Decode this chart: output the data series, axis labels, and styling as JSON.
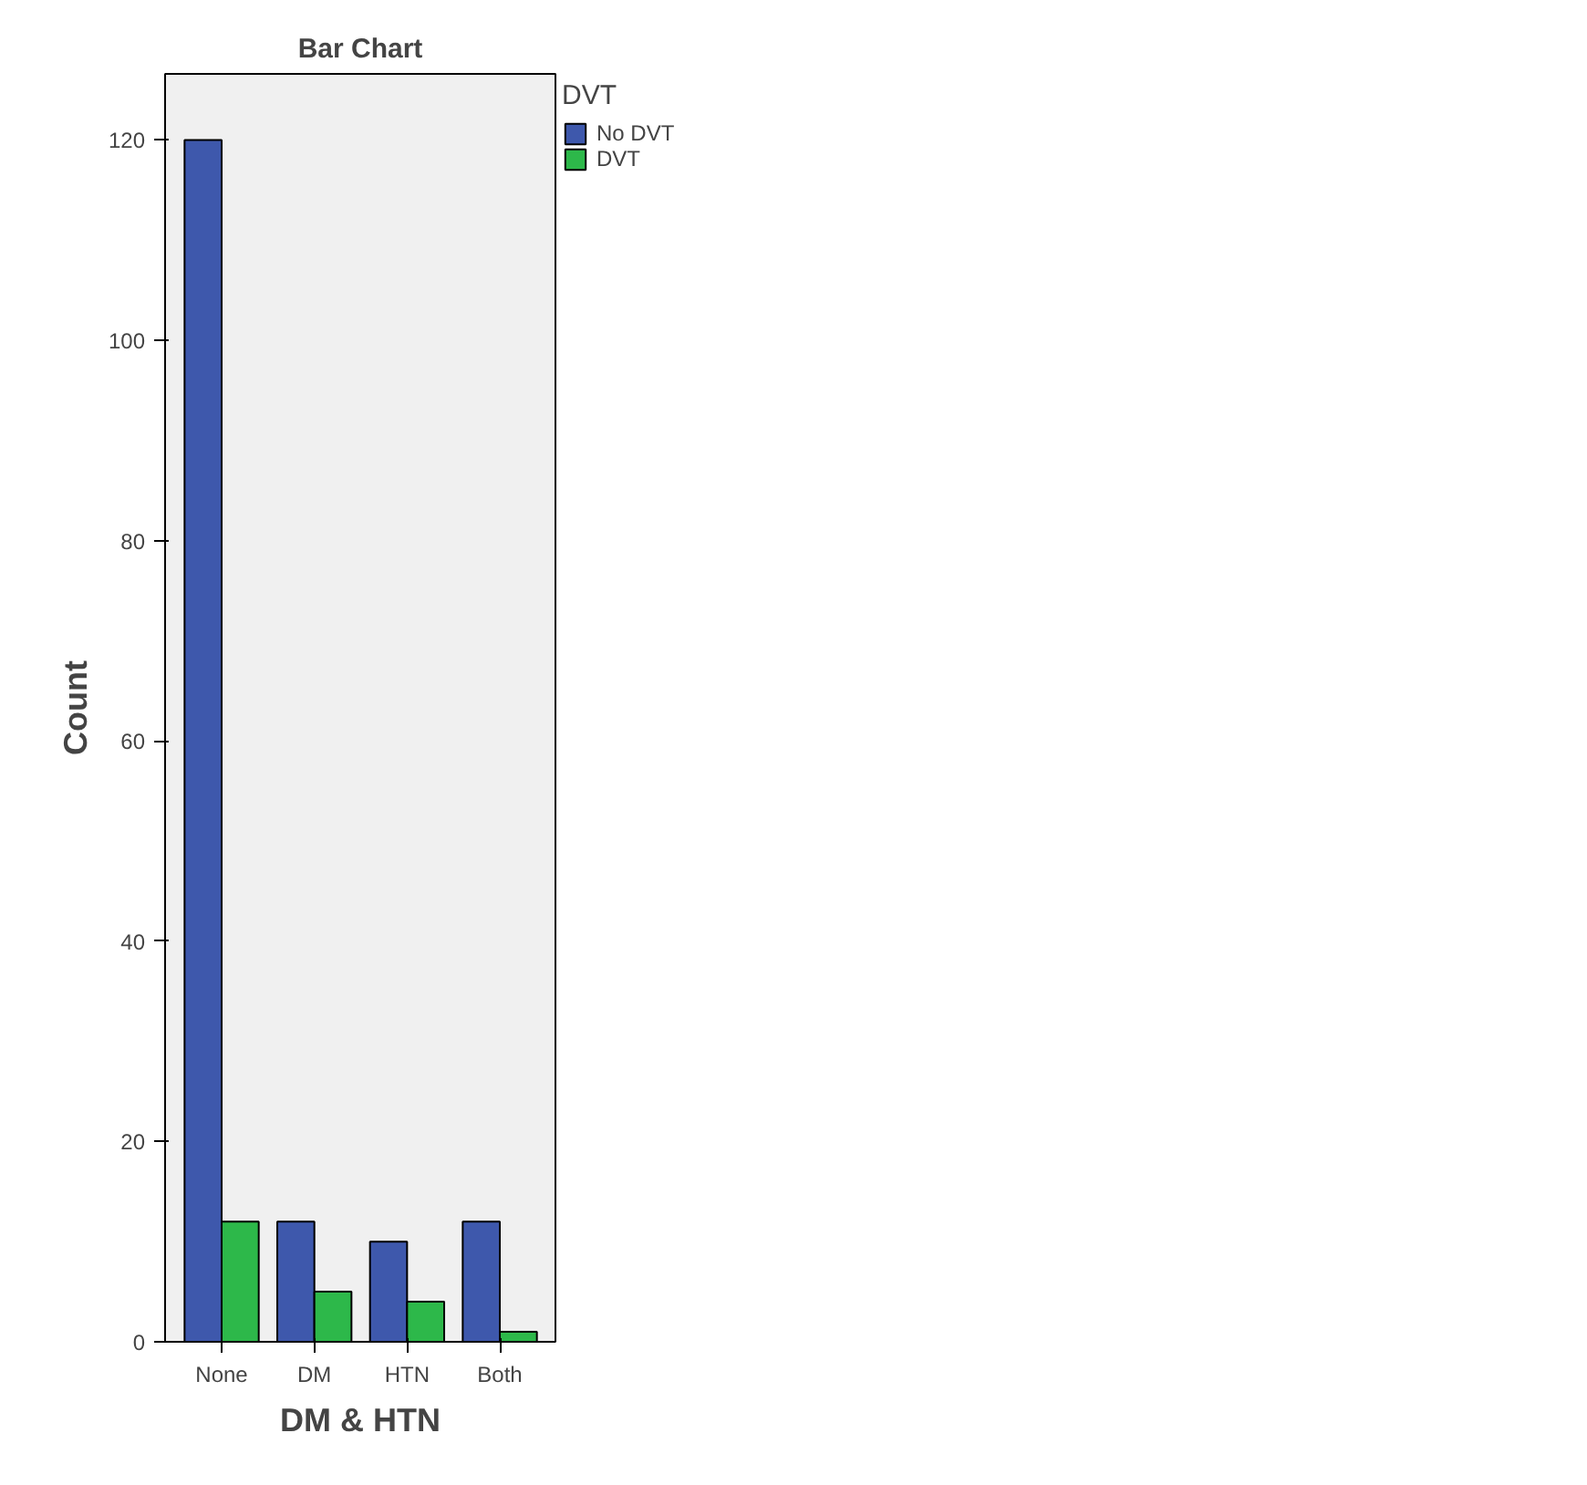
{
  "chart_data": {
    "type": "bar",
    "title": "Bar Chart",
    "xlabel": "DM & HTN",
    "ylabel": "Count",
    "legend_title": "DVT",
    "categories": [
      "None",
      "DM",
      "HTN",
      "Both"
    ],
    "series": [
      {
        "name": "No DVT",
        "color": "#3e58ac",
        "values": [
          120,
          12,
          10,
          12
        ]
      },
      {
        "name": "DVT",
        "color": "#2db84a",
        "values": [
          12,
          5,
          4,
          1
        ]
      }
    ],
    "ylim": [
      0,
      126.6
    ],
    "yticks": [
      0,
      20,
      40,
      60,
      80,
      100,
      120
    ],
    "grid": false,
    "legend": "top right"
  }
}
